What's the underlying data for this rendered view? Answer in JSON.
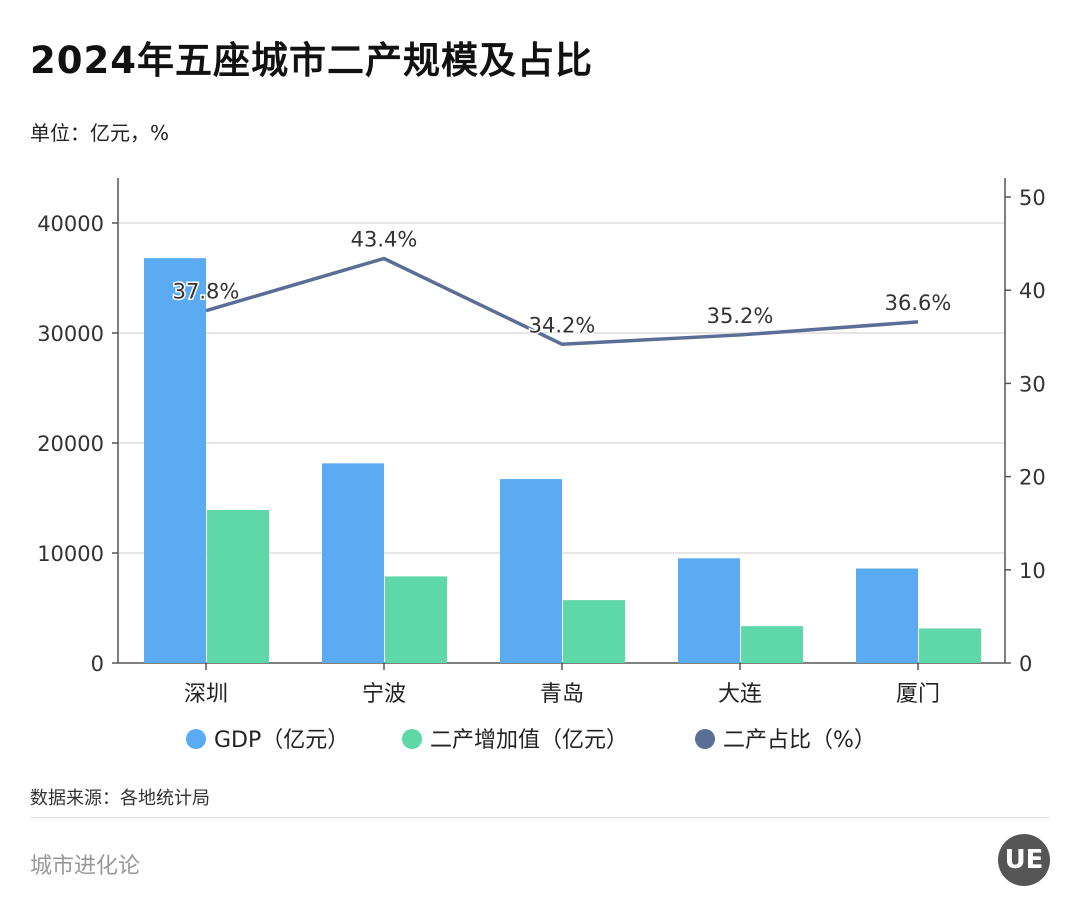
{
  "title": "2024年五座城市二产规模及占比",
  "unit": "单位：亿元，%",
  "source": "数据来源：各地统计局",
  "footer": "城市进化论",
  "logo_text": "UE",
  "chart_data": {
    "type": "bar+line",
    "categories": [
      "深圳",
      "宁波",
      "青岛",
      "大连",
      "厦门"
    ],
    "series": [
      {
        "name": "GDP（亿元）",
        "type": "bar",
        "axis": "left",
        "color": "#5AABF2",
        "values": [
          36802,
          18148,
          16719,
          9516,
          8589
        ]
      },
      {
        "name": "二产增加值（亿元）",
        "type": "bar",
        "axis": "left",
        "color": "#5FD8A9",
        "values": [
          13911,
          7876,
          5718,
          3350,
          3143
        ]
      },
      {
        "name": "二产占比（%）",
        "type": "line",
        "axis": "right",
        "color": "#5A6E96",
        "values": [
          37.8,
          43.4,
          34.2,
          35.2,
          36.6
        ],
        "labels": [
          "37.8%",
          "43.4%",
          "34.2%",
          "35.2%",
          "36.6%"
        ]
      }
    ],
    "left_axis": {
      "ylim": [
        0,
        40000
      ],
      "ticks": [
        "0",
        "10000",
        "20000",
        "30000",
        "40000"
      ]
    },
    "right_axis": {
      "ylim": [
        0,
        50
      ],
      "ticks": [
        "0",
        "10",
        "20",
        "30",
        "40",
        "50"
      ]
    },
    "grid": true,
    "legend": "bottom"
  }
}
